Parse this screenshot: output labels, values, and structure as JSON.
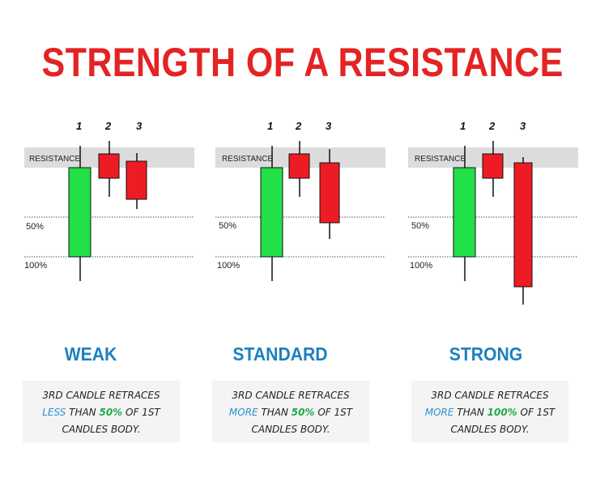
{
  "title": "STRENGTH OF A RESISTANCE",
  "colors": {
    "title": "#e42324",
    "bullish": "#22e048",
    "bearish": "#ed1c24",
    "heading": "#1e7fc0",
    "zone": "#dcdcdc"
  },
  "labels": {
    "resistance": "RESISTANCE",
    "half": "50%",
    "full": "100%"
  },
  "candle_numbers": [
    "1",
    "2",
    "3"
  ],
  "panels": [
    {
      "heading": "WEAK",
      "caption": {
        "line1": "3RD CANDLE RETRACES",
        "comparative": "LESS",
        "mid": " THAN ",
        "percent": "50%",
        "tail": " OF 1ST",
        "line3": "CANDLES BODY."
      },
      "third_candle_retrace_pct": 35
    },
    {
      "heading": "STANDARD",
      "caption": {
        "line1": "3RD CANDLE RETRACES",
        "comparative": "MORE",
        "mid": " THAN ",
        "percent": "50%",
        "tail": " OF 1ST",
        "line3": "CANDLES BODY."
      },
      "third_candle_retrace_pct": 60
    },
    {
      "heading": "STRONG",
      "caption": {
        "line1": "3RD CANDLE RETRACES",
        "comparative": "MORE",
        "mid": " THAN ",
        "percent": "100%",
        "tail": " OF 1ST",
        "line3": "CANDLES BODY."
      },
      "third_candle_retrace_pct": 130
    }
  ]
}
